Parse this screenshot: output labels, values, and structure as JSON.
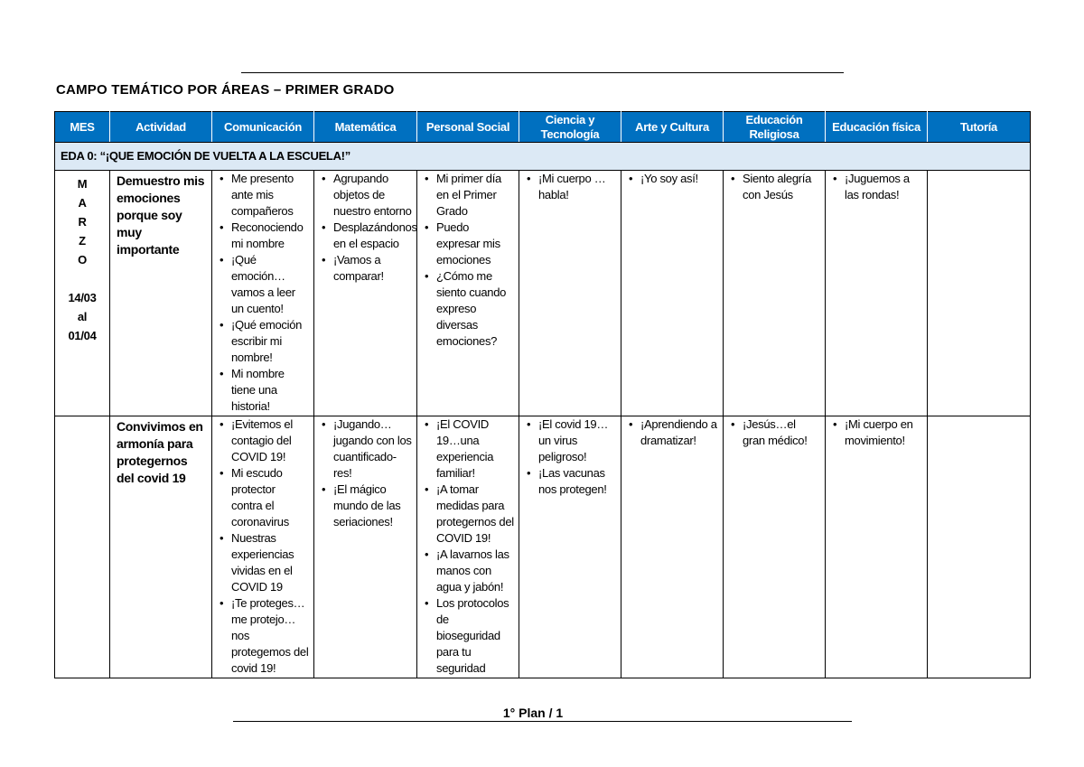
{
  "title": "CAMPO TEMÁTICO POR ÁREAS – PRIMER GRADO",
  "columns": [
    "MES",
    "Actividad",
    "Comunicación",
    "Matemática",
    "Personal Social",
    "Ciencia y Tecnología",
    "Arte y Cultura",
    "Educación Religiosa",
    "Educación física",
    "Tutoría"
  ],
  "eda": "EDA 0: “¡QUE EMOCIÓN DE VUELTA A LA ESCUELA!”",
  "mes": {
    "letters": [
      "M",
      "A",
      "R",
      "Z",
      "O"
    ],
    "from": "14/03",
    "al": "al",
    "to": "01/04"
  },
  "rows": [
    {
      "actividad": "Demuestro mis emociones porque soy muy importante",
      "cells": [
        [
          "Me presento ante mis compañeros",
          "Reconociendo mi nombre",
          "¡Qué emoción… vamos a leer un cuento!",
          "¡Qué emoción escribir mi nombre!",
          "Mi nombre tiene una historia!"
        ],
        [
          "Agrupando objetos de nuestro entorno",
          "Desplazándonos en el espacio",
          "¡Vamos a comparar!"
        ],
        [
          "Mi primer día en el Primer Grado",
          "Puedo expresar mis emociones",
          "¿Cómo me siento cuando expreso diversas emociones?"
        ],
        [
          "¡Mi cuerpo … habla!"
        ],
        [
          "¡Yo soy así!"
        ],
        [
          "Siento alegría con Jesús"
        ],
        [
          "¡Juguemos a las rondas!"
        ],
        []
      ]
    },
    {
      "actividad": "Convivimos en armonía para protegernos del covid 19",
      "cells": [
        [
          "¡Evitemos el contagio del COVID 19!",
          "Mi escudo protector contra el coronavirus",
          "Nuestras experiencias vividas en el COVID 19",
          "¡Te proteges…me protejo…nos protegemos del covid 19!"
        ],
        [
          "¡Jugando… jugando con los cuantificado-res!",
          "¡El mágico mundo de las seriaciones!"
        ],
        [
          "¡El COVID 19…una experiencia familiar!",
          "¡A tomar medidas para protegernos del COVID 19!",
          "¡A lavarnos las manos con agua y jabón!",
          "Los protocolos de bioseguridad para tu seguridad"
        ],
        [
          "¡El covid 19… un virus peligroso!",
          "¡Las vacunas nos protegen!"
        ],
        [
          "¡Aprendiendo a dramatizar!"
        ],
        [
          "¡Jesús…el gran médico!"
        ],
        [
          "¡Mi cuerpo en movimiento!"
        ],
        []
      ]
    }
  ],
  "footer": "1° Plan / 1",
  "colors": {
    "header": "#0070c0",
    "eda_row": "#dce9f5"
  }
}
